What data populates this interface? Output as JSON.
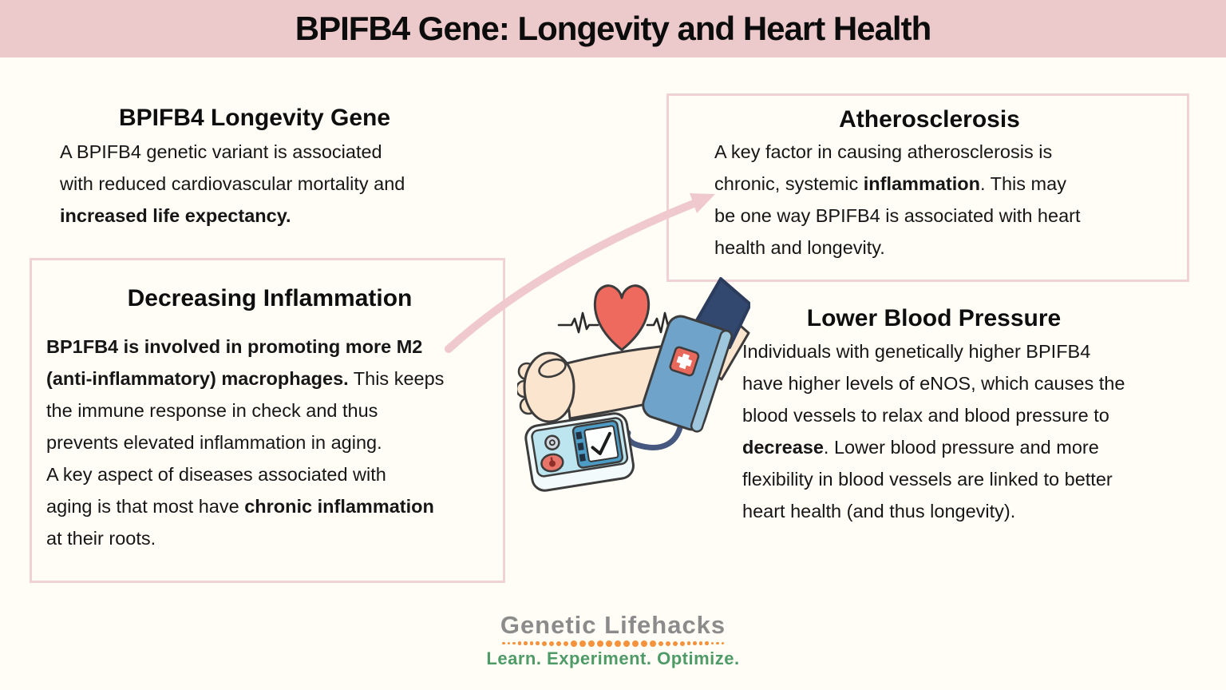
{
  "page": {
    "title": "BPIFB4 Gene: Longevity and Heart Health",
    "colors": {
      "banner_bg": "#ecc9cb",
      "page_bg": "#fffdf6",
      "box_border": "#f1d2d4",
      "arrow_pink": "#efc9cd",
      "text": "#191919",
      "heart_red": "#ee6a5e",
      "cuff_blue": "#6fa3c9",
      "sleeve_navy": "#33486e",
      "skin": "#fce5cf",
      "monitor_panel": "#bce5ef"
    }
  },
  "sections": {
    "longevity": {
      "heading": "BPIFB4 Longevity Gene",
      "body": [
        {
          "t": "A BPIFB4 genetic variant is associated\nwith reduced cardiovascular mortality and\n"
        },
        {
          "t": "increased life expectancy.",
          "b": true
        }
      ]
    },
    "atherosclerosis": {
      "heading": "Atherosclerosis",
      "body": [
        {
          "t": "A key factor in causing atherosclerosis is\nchronic, systemic "
        },
        {
          "t": "inflammation",
          "b": true
        },
        {
          "t": ". This may\nbe one way BPIFB4 is associated with heart\nhealth and longevity."
        }
      ]
    },
    "inflammation": {
      "heading": "Decreasing Inflammation",
      "para1": [
        {
          "t": "BP1FB4 is involved in promoting more M2\n(anti-inflammatory) macrophages.",
          "b": true
        },
        {
          "t": " This keeps\nthe immune response in check and thus\nprevents elevated inflammation in aging."
        }
      ],
      "para2": [
        {
          "t": "A key aspect of diseases associated with\naging is that most have "
        },
        {
          "t": "chronic inflammation",
          "b": true
        },
        {
          "t": "\nat their roots."
        }
      ]
    },
    "blood_pressure": {
      "heading": "Lower Blood Pressure",
      "body": [
        {
          "t": "Individuals with genetically higher BPIFB4\nhave higher levels of eNOS, which causes the\nblood vessels to relax and blood pressure to\n"
        },
        {
          "t": "decrease",
          "b": true
        },
        {
          "t": ". Lower blood pressure and more\nflexibility in blood vessels are linked to better\nheart health (and thus longevity)."
        }
      ]
    }
  },
  "illustration": {
    "icons": [
      "heart-icon",
      "ekg-line-left-icon",
      "ekg-line-right-icon",
      "arm-with-cuff-illustration",
      "blood-pressure-cuff",
      "medical-cross-patch-icon",
      "blood-pressure-monitor-icon",
      "curved-arrow-connector"
    ]
  },
  "footer": {
    "brand": "Genetic Lifehacks",
    "tagline": "Learn. Experiment. Optimize.",
    "colors": {
      "brand": "#8b8b8b",
      "tagline": "#4e9b68",
      "dots": "#f5923e"
    }
  }
}
